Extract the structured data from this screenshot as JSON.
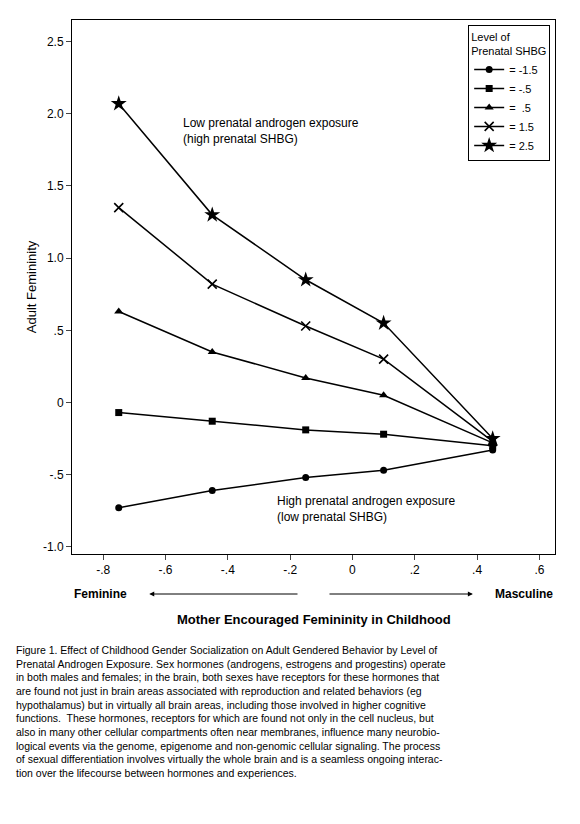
{
  "chart_data": {
    "type": "line",
    "ylabel": "Adult Femininity",
    "xlabel": "Mother Encouraged Femininity in Childhood",
    "annotations": [
      "Low prenatal androgen exposure\n(high prenatal SHBG)",
      "High prenatal androgen exposure\n(low prenatal SHBG)",
      "Feminine",
      "Masculine"
    ],
    "caption": "Figure 1. Effect of Childhood Gender Socialization on Adult Gendered Behavior by Level of\nPrenatal Androgen Exposure. Sex hormones (androgens, estrogens and progestins) operate\nin both males and females; in the brain, both sexes have receptors for these hormones that\nare found not just in brain areas associated with reproduction and related behaviors (eg\nhypothalamus) but in virtually all brain areas, including those involved in higher cognitive\nfunctions.  These hormones, receptors for which are found not only in the cell nucleus, but\nalso in many other cellular compartments often near membranes, influence many neurobio-\nlogical events via the genome, epigenome and non-genomic cellular signaling. The process\nof sexual differentiation involves virtually the whole brain and is a seamless ongoing interac-\ntion over the lifecourse between hormones and experiences.",
    "legend_title": "Level of\nPrenatal SHBG",
    "legend": "upper right",
    "grid": false,
    "color": "#000000",
    "x": [
      -0.75,
      -0.45,
      -0.15,
      0.1,
      0.45
    ],
    "series": [
      {
        "name": "= -1.5",
        "marker": "circle",
        "values": [
          -0.73,
          -0.61,
          -0.52,
          -0.47,
          -0.33
        ]
      },
      {
        "name": "= -.5",
        "marker": "square",
        "values": [
          -0.07,
          -0.13,
          -0.19,
          -0.22,
          -0.3
        ]
      },
      {
        "name": "=  .5",
        "marker": "triangle-up",
        "values": [
          0.63,
          0.35,
          0.17,
          0.05,
          -0.28
        ]
      },
      {
        "name": "= 1.5",
        "marker": "x",
        "values": [
          1.35,
          0.82,
          0.53,
          0.3,
          -0.27
        ]
      },
      {
        "name": "= 2.5",
        "marker": "star",
        "values": [
          2.07,
          1.3,
          0.85,
          0.55,
          -0.25
        ]
      }
    ],
    "xlim": [
      -0.9,
      0.65
    ],
    "ylim": [
      -1.05,
      2.65
    ],
    "xticks": [
      {
        "value": -0.8,
        "label": "-.8"
      },
      {
        "value": -0.6,
        "label": "-.6"
      },
      {
        "value": -0.4,
        "label": "-.4"
      },
      {
        "value": -0.2,
        "label": "-.2"
      },
      0,
      {
        "value": 0.2,
        "label": ".2"
      },
      {
        "value": 0.4,
        "label": ".4"
      },
      {
        "value": 0.6,
        "label": ".6"
      }
    ],
    "yticks": [
      {
        "value": -1.0,
        "label": "-1.0"
      },
      {
        "value": -0.5,
        "label": "-.5"
      },
      0,
      {
        "value": 0.5,
        "label": ".5"
      },
      {
        "value": 1.0,
        "label": "1.0"
      },
      1.5,
      {
        "value": 2.0,
        "label": "2.0"
      },
      2.5
    ]
  }
}
